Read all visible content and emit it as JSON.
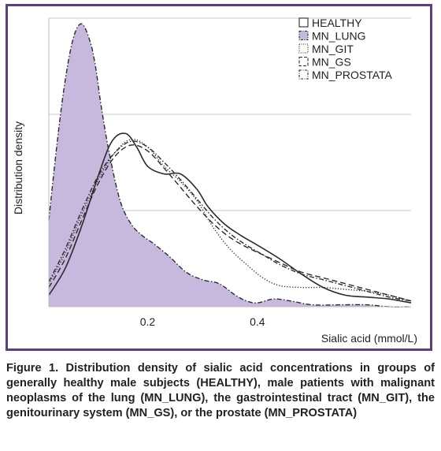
{
  "chart_data": {
    "type": "area",
    "xlabel": "Sialic acid (mmol/L)",
    "ylabel": "Distribution density",
    "xlim": [
      0.02,
      0.68
    ],
    "ylim": [
      0,
      1.5
    ],
    "xticks": [
      {
        "value": 0.2,
        "label": "0.2"
      },
      {
        "value": 0.4,
        "label": "0.4"
      }
    ],
    "yticks": [
      0,
      0.5,
      1.0,
      1.5
    ],
    "grid": {
      "horizontal": true,
      "vertical": false
    },
    "legend_position": "top-right",
    "series": [
      {
        "name": "HEALTHY",
        "style": "solid",
        "x": [
          0.02,
          0.05,
          0.08,
          0.11,
          0.135,
          0.16,
          0.18,
          0.2,
          0.23,
          0.26,
          0.29,
          0.31,
          0.34,
          0.37,
          0.4,
          0.44,
          0.48,
          0.52,
          0.56,
          0.6,
          0.64,
          0.68
        ],
        "y": [
          0.06,
          0.2,
          0.42,
          0.68,
          0.86,
          0.9,
          0.83,
          0.73,
          0.69,
          0.69,
          0.61,
          0.52,
          0.43,
          0.37,
          0.32,
          0.25,
          0.17,
          0.1,
          0.06,
          0.05,
          0.04,
          0.02
        ]
      },
      {
        "name": "MN_LUNG",
        "style": "filled",
        "color": "#c7b8dd",
        "x": [
          0.02,
          0.035,
          0.05,
          0.065,
          0.08,
          0.095,
          0.105,
          0.115,
          0.13,
          0.15,
          0.17,
          0.19,
          0.21,
          0.24,
          0.27,
          0.3,
          0.33,
          0.36,
          0.38,
          0.4,
          0.43,
          0.46,
          0.5,
          0.55,
          0.6,
          0.64,
          0.68
        ],
        "y": [
          0.45,
          0.85,
          1.18,
          1.4,
          1.47,
          1.38,
          1.25,
          1.05,
          0.8,
          0.55,
          0.43,
          0.37,
          0.33,
          0.26,
          0.18,
          0.14,
          0.12,
          0.06,
          0.03,
          0.02,
          0.04,
          0.03,
          0.01,
          0.01,
          0.01,
          0.0,
          0.0
        ]
      },
      {
        "name": "MN_GIT",
        "style": "dotted",
        "x": [
          0.02,
          0.05,
          0.08,
          0.11,
          0.14,
          0.17,
          0.2,
          0.23,
          0.26,
          0.29,
          0.32,
          0.35,
          0.38,
          0.41,
          0.44,
          0.48,
          0.52,
          0.56,
          0.6,
          0.64,
          0.68
        ],
        "y": [
          0.12,
          0.28,
          0.48,
          0.66,
          0.8,
          0.87,
          0.83,
          0.73,
          0.65,
          0.55,
          0.41,
          0.3,
          0.22,
          0.15,
          0.11,
          0.1,
          0.1,
          0.09,
          0.08,
          0.06,
          0.03
        ]
      },
      {
        "name": "MN_GS",
        "style": "dashed",
        "x": [
          0.02,
          0.05,
          0.08,
          0.11,
          0.14,
          0.17,
          0.2,
          0.23,
          0.26,
          0.29,
          0.32,
          0.35,
          0.38,
          0.41,
          0.44,
          0.48,
          0.52,
          0.56,
          0.6,
          0.64,
          0.68
        ],
        "y": [
          0.1,
          0.25,
          0.45,
          0.64,
          0.78,
          0.84,
          0.81,
          0.72,
          0.62,
          0.52,
          0.43,
          0.36,
          0.31,
          0.27,
          0.23,
          0.18,
          0.15,
          0.12,
          0.09,
          0.06,
          0.03
        ]
      },
      {
        "name": "MN_PROSTATA",
        "style": "dash-dot",
        "x": [
          0.02,
          0.05,
          0.08,
          0.11,
          0.14,
          0.17,
          0.2,
          0.23,
          0.26,
          0.29,
          0.32,
          0.35,
          0.38,
          0.41,
          0.44,
          0.48,
          0.52,
          0.56,
          0.6,
          0.64,
          0.68
        ],
        "y": [
          0.13,
          0.3,
          0.5,
          0.68,
          0.8,
          0.86,
          0.83,
          0.75,
          0.66,
          0.56,
          0.46,
          0.38,
          0.32,
          0.27,
          0.22,
          0.17,
          0.14,
          0.11,
          0.08,
          0.05,
          0.03
        ]
      }
    ]
  },
  "caption": "Figure 1. Distribution density of sialic acid concentrations in groups of generally healthy male subjects (HEALTHY), male patients with malignant neoplasms of the lung (MN_LUNG), the gastrointestinal tract (MN_GIT), the genitourinary system (MN_GS), or the prostate (MN_PROSTATA)",
  "colors": {
    "frame": "#5b3f86",
    "lung_fill": "#c7b8dd",
    "line": "#2b2b2b",
    "grid": "#c9c9c9"
  }
}
